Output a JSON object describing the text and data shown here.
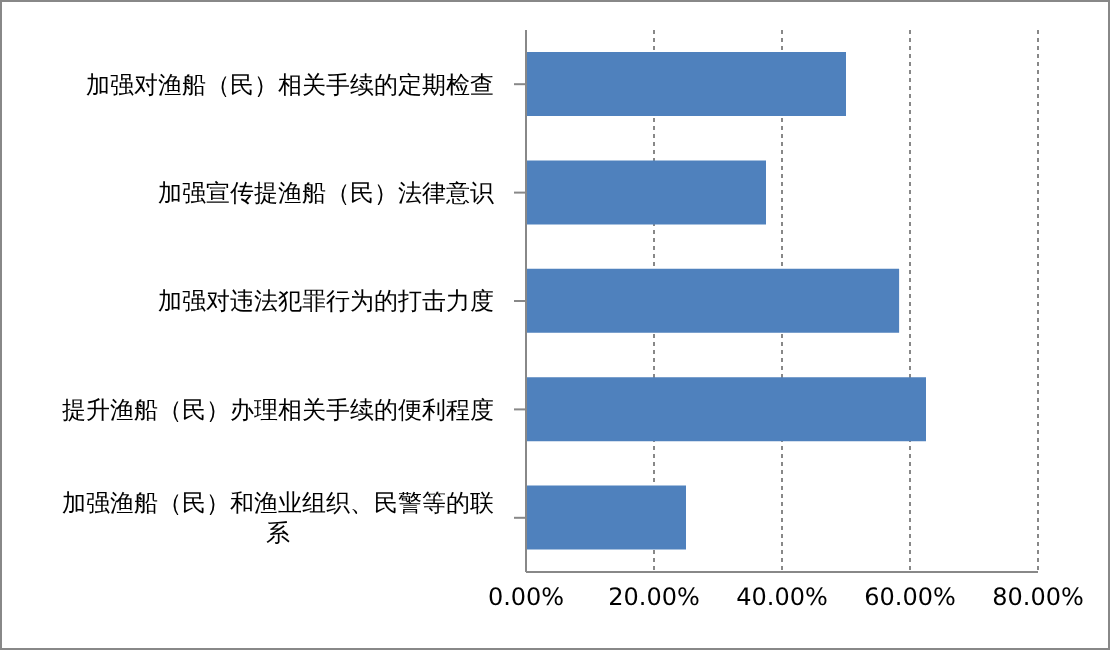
{
  "chart_data": {
    "type": "bar",
    "orientation": "horizontal",
    "categories": [
      "加强对渔船（民）相关手续的定期检查",
      "加强宣传提渔船（民）法律意识",
      "加强对违法犯罪行为的打击力度",
      "提升渔船（民）办理相关手续的便利程度",
      "加强渔船（民）和渔业组织、民警等的联系"
    ],
    "values": [
      50,
      37.5,
      58.3,
      62.5,
      25
    ],
    "color": "#4f81bd",
    "xlim": [
      0,
      80
    ],
    "xticks": [
      {
        "value": 0,
        "label": "0.00%"
      },
      {
        "value": 20,
        "label": "20.00%"
      },
      {
        "value": 40,
        "label": "40.00%"
      },
      {
        "value": 60,
        "label": "60.00%"
      },
      {
        "value": 80,
        "label": "80.00%"
      }
    ],
    "grid": "x",
    "legend": false
  }
}
